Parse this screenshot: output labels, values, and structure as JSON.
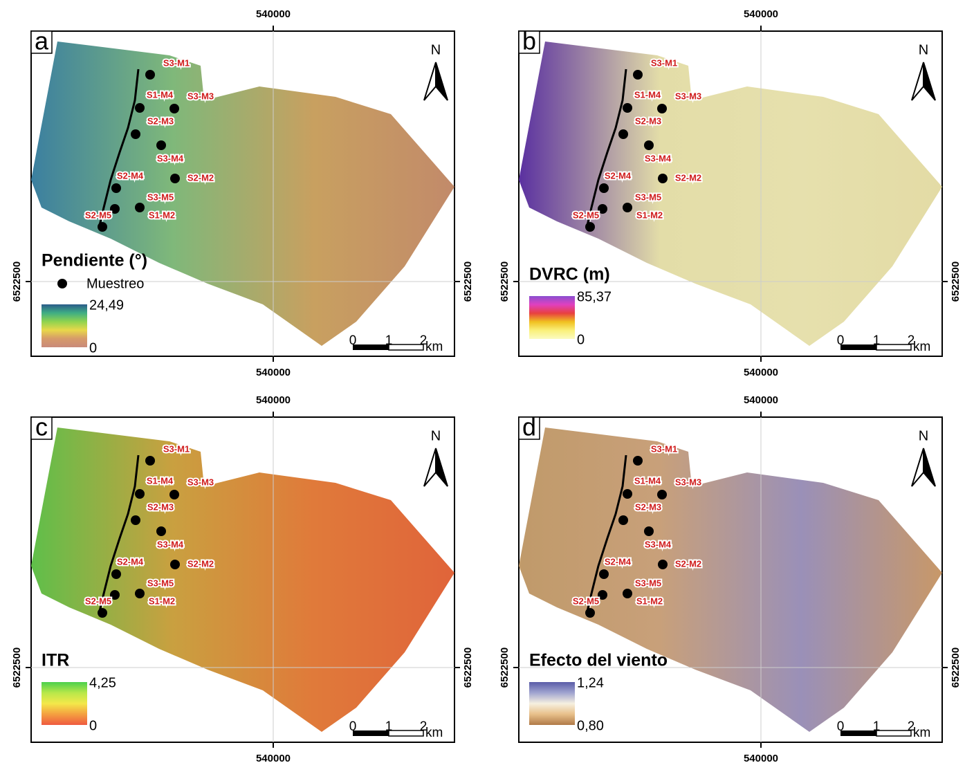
{
  "panels": [
    {
      "letter": "a",
      "north": "N",
      "x_top": "540000",
      "x_bottom": "540000",
      "y_left": "6522500",
      "y_right": "6522500",
      "legend_title": "Pendiente (°)",
      "legend_point": "Muestreo",
      "legend_max": "24,49",
      "legend_min": "0",
      "scale_ticks": [
        "0",
        "1",
        "2"
      ],
      "scale_unit": "km",
      "ramp": [
        "#2b5c8a",
        "#3fae84",
        "#8fd34f",
        "#e8d84a",
        "#d69a6a",
        "#c98a7a"
      ],
      "terrain": [
        "#3b7fa0",
        "#7fb87a",
        "#c8a060",
        "#c28a6a"
      ]
    },
    {
      "letter": "b",
      "north": "N",
      "x_top": "540000",
      "x_bottom": "540000",
      "y_left": "6522500",
      "y_right": "6522500",
      "legend_title": "DVRC (m)",
      "legend_max": "85,37",
      "legend_min": "0",
      "scale_ticks": [
        "0",
        "1",
        "2"
      ],
      "scale_unit": "km",
      "ramp": [
        "#8a4fd0",
        "#e040c0",
        "#e84040",
        "#f0c020",
        "#faf07a",
        "#fbfbc0"
      ],
      "terrain": [
        "#5a30a0",
        "#e3dda8",
        "#e6e0ad",
        "#e3dba5"
      ]
    },
    {
      "letter": "c",
      "north": "N",
      "x_top": "540000",
      "x_bottom": "540000",
      "y_left": "6522500",
      "y_right": "6522500",
      "legend_title": "ITR",
      "legend_max": "4,25",
      "legend_min": "0",
      "scale_ticks": [
        "0",
        "1",
        "2"
      ],
      "scale_unit": "km",
      "ramp": [
        "#4cd04c",
        "#b8e84a",
        "#f4e84a",
        "#f4a040",
        "#ef5a40"
      ],
      "terrain": [
        "#5fbf4a",
        "#c9a040",
        "#e07a3a",
        "#e0643a"
      ]
    },
    {
      "letter": "d",
      "north": "N",
      "x_top": "540000",
      "x_bottom": "540000",
      "y_left": "6522500",
      "y_right": "6522500",
      "legend_title": "Efecto del viento",
      "legend_max": "1,24",
      "legend_min": "0,80",
      "scale_ticks": [
        "0",
        "1",
        "2"
      ],
      "scale_unit": "km",
      "ramp": [
        "#5a5ca8",
        "#a0a4d0",
        "#f6f0e0",
        "#e8c08a",
        "#b07a48"
      ],
      "terrain": [
        "#c09a6a",
        "#c8a07a",
        "#9a90b8",
        "#c89868"
      ]
    }
  ],
  "samples": [
    {
      "label": "S3-M1"
    },
    {
      "label": "S1-M4"
    },
    {
      "label": "S3-M3"
    },
    {
      "label": "S2-M3"
    },
    {
      "label": "S3-M4"
    },
    {
      "label": "S2-M2"
    },
    {
      "label": "S2-M4"
    },
    {
      "label": "S3-M5"
    },
    {
      "label": "S1-M2"
    },
    {
      "label": "S2-M5"
    }
  ]
}
